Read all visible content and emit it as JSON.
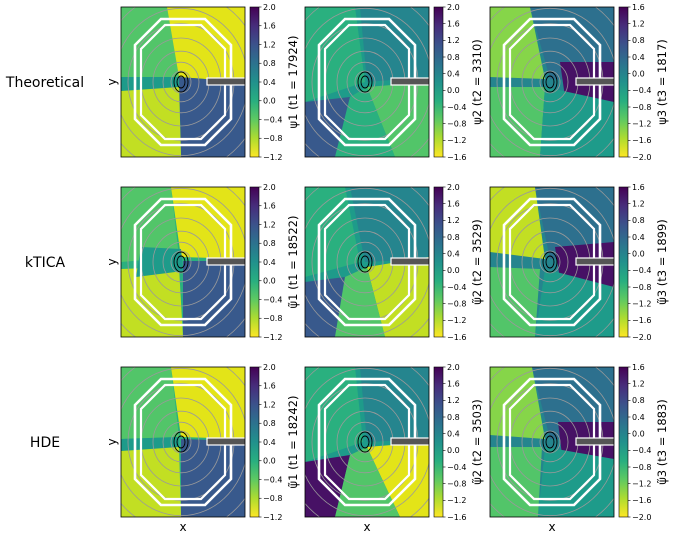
{
  "chart_data": {
    "type": "heatmap",
    "row_labels": [
      "Theoretical",
      "kTICA",
      "HDE"
    ],
    "ylabel": "y",
    "xlabel": "x",
    "colormap": "viridis (reversed)",
    "panels": [
      {
        "row": 0,
        "col": 0,
        "colorbar_label": "ψ1 (t1 = 17924)",
        "ticks": [
          "2.0",
          "1.6",
          "1.2",
          "0.8",
          "0.4",
          "0.0",
          "−0.4",
          "−0.8",
          "−1.2"
        ],
        "range": [
          -1.2,
          2.0
        ]
      },
      {
        "row": 0,
        "col": 1,
        "colorbar_label": "ψ2 (t2 = 3310)",
        "ticks": [
          "2.0",
          "1.6",
          "1.2",
          "0.8",
          "0.4",
          "0.0",
          "−0.4",
          "−0.8",
          "−1.2",
          "−1.6"
        ],
        "range": [
          -1.6,
          2.0
        ]
      },
      {
        "row": 0,
        "col": 2,
        "colorbar_label": "ψ3 (t3 = 1817)",
        "ticks": [
          "1.6",
          "1.2",
          "0.8",
          "0.4",
          "0.0",
          "−0.4",
          "−0.8",
          "−1.2",
          "−1.6",
          "−2.0"
        ],
        "range": [
          -2.0,
          1.6
        ]
      },
      {
        "row": 1,
        "col": 0,
        "colorbar_label": "ψ̃1 (t1 = 18522)",
        "ticks": [
          "2.0",
          "1.6",
          "1.2",
          "0.8",
          "0.4",
          "0.0",
          "−0.4",
          "−0.8",
          "−1.2"
        ],
        "range": [
          -1.2,
          2.0
        ]
      },
      {
        "row": 1,
        "col": 1,
        "colorbar_label": "ψ̃2 (t2 = 3529)",
        "ticks": [
          "2.0",
          "1.6",
          "1.2",
          "0.8",
          "0.4",
          "0.0",
          "−0.4",
          "−0.8",
          "−1.2",
          "−1.6"
        ],
        "range": [
          -1.6,
          2.0
        ]
      },
      {
        "row": 1,
        "col": 2,
        "colorbar_label": "ψ̃3 (t3 = 1899)",
        "ticks": [
          "1.6",
          "1.2",
          "0.8",
          "0.4",
          "0.0",
          "−0.4",
          "−0.8",
          "−1.2",
          "−1.6",
          "−2.0"
        ],
        "range": [
          -2.0,
          1.6
        ]
      },
      {
        "row": 2,
        "col": 0,
        "colorbar_label": "ψ̃1 (t1 = 18242)",
        "ticks": [
          "2.0",
          "1.6",
          "1.2",
          "0.8",
          "0.4",
          "0.0",
          "−0.4",
          "−0.8",
          "−1.2"
        ],
        "range": [
          -1.2,
          2.0
        ]
      },
      {
        "row": 2,
        "col": 1,
        "colorbar_label": "ψ̃2 (t2 = 3503)",
        "ticks": [
          "2.0",
          "1.6",
          "1.2",
          "0.8",
          "0.4",
          "0.0",
          "−0.4",
          "−0.8",
          "−1.2",
          "−1.6"
        ],
        "range": [
          -1.6,
          2.0
        ]
      },
      {
        "row": 2,
        "col": 2,
        "colorbar_label": "ψ̃3 (t3 = 1883)",
        "ticks": [
          "1.6",
          "1.2",
          "0.8",
          "0.4",
          "0.0",
          "−0.4",
          "−0.8",
          "−1.2",
          "−1.6",
          "−2.0"
        ],
        "range": [
          -2.0,
          1.6
        ]
      }
    ]
  }
}
